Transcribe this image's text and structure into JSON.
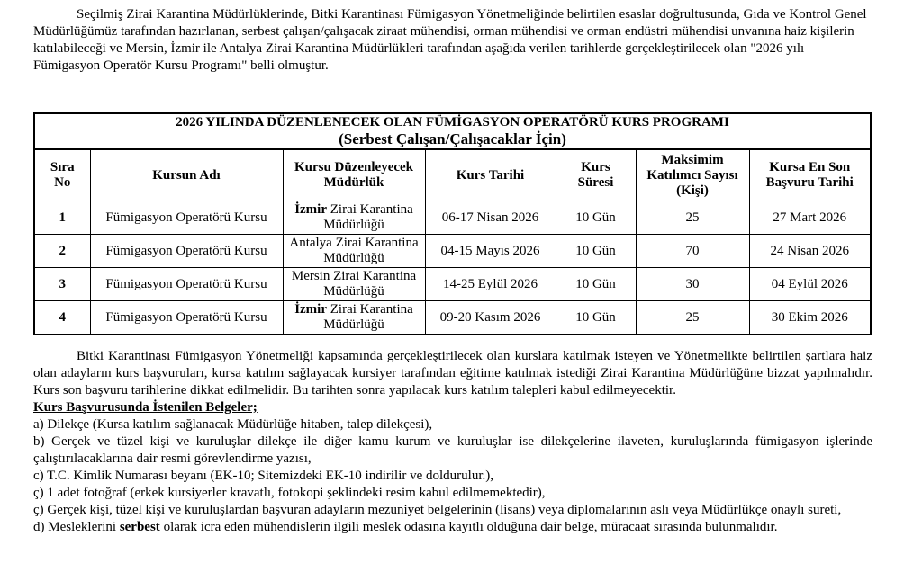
{
  "intro": "Seçilmiş Zirai Karantina Müdürlüklerinde, Bitki Karantinası Fümigasyon Yönetmeliğinde belirtilen esaslar doğrultusunda, Gıda ve Kontrol Genel Müdürlüğümüz tarafından hazırlanan, serbest çalışan/çalışacak ziraat mühendisi, orman mühendisi ve orman endüstri mühendisi unvanına haiz kişilerin katılabileceği ve Mersin, İzmir ile Antalya Zirai Karantina Müdürlükleri tarafından aşağıda verilen tarihlerde gerçekleştirilecek olan \"2026 yılı Fümigasyon Operatör Kursu Programı\" belli olmuştur.",
  "table": {
    "title": "2026 YILINDA DÜZENLENECEK OLAN FÜMİGASYON OPERATÖRÜ KURS PROGRAMI",
    "subtitle": "(Serbest Çalışan/Çalışacaklar İçin)",
    "headers": [
      "Sıra No",
      "Kursun Adı",
      "Kursu Düzenleyecek Müdürlük",
      "Kurs Tarihi",
      "Kurs Süresi",
      "Maksimim Katılımcı Sayısı (Kişi)",
      "Kursa En Son Başvuru Tarihi"
    ],
    "rows": [
      {
        "no": "1",
        "name": "Fümigasyon Operatörü Kursu",
        "org_bold": "İzmir",
        "org_rest": " Zirai Karantina Müdürlüğü",
        "date": "06-17 Nisan 2026",
        "duration": "10 Gün",
        "max": "25",
        "deadline": "27 Mart 2026"
      },
      {
        "no": "2",
        "name": "Fümigasyon Operatörü Kursu",
        "org_bold": "",
        "org_rest": "Antalya Zirai Karantina Müdürlüğü",
        "date": "04-15 Mayıs 2026",
        "duration": "10 Gün",
        "max": "70",
        "deadline": "24 Nisan 2026"
      },
      {
        "no": "3",
        "name": "Fümigasyon Operatörü Kursu",
        "org_bold": "",
        "org_rest": "Mersin Zirai Karantina Müdürlüğü",
        "date": "14-25 Eylül 2026",
        "duration": "10 Gün",
        "max": "30",
        "deadline": "04 Eylül 2026"
      },
      {
        "no": "4",
        "name": "Fümigasyon Operatörü Kursu",
        "org_bold": "İzmir",
        "org_rest": " Zirai Karantina Müdürlüğü",
        "date": "09-20 Kasım 2026",
        "duration": "10 Gün",
        "max": "25",
        "deadline": "30 Ekim 2026"
      }
    ]
  },
  "application": "Bitki Karantinası Fümigasyon Yönetmeliği kapsamında gerçekleştirilecek olan kurslara katılmak isteyen ve Yönetmelikte belirtilen şartlara haiz olan adayların kurs başvuruları, kursa katılım sağlayacak kursiyer tarafından eğitime katılmak istediği Zirai Karantina Müdürlüğüne bizzat yapılmalıdır. Kurs son başvuru tarihlerine dikkat edilmelidir. Bu tarihten sonra yapılacak kurs katılım talepleri kabul edilmeyecektir.",
  "documents": {
    "title": "Kurs Başvurusunda İstenilen Belgeler;",
    "items": [
      "a) Dilekçe (Kursa katılım sağlanacak Müdürlüğe hitaben, talep dilekçesi),",
      "b) Gerçek ve tüzel kişi ve kuruluşlar dilekçe ile diğer kamu kurum ve kuruluşlar ise dilekçelerine ilaveten, kuruluşlarında fümigasyon işlerinde çalıştırılacaklarına dair resmi görevlendirme yazısı,",
      "c) T.C. Kimlik Numarası beyanı (EK-10; Sitemizdeki EK-10 indirilir ve doldurulur.),",
      "ç) 1 adet fotoğraf (erkek kursiyerler kravatlı, fotokopi şeklindeki resim kabul edilmemektedir),",
      "ç) Gerçek kişi, tüzel kişi ve kuruluşlardan başvuran adayların mezuniyet belgelerinin (lisans) veya diplomalarının aslı veya Müdürlükçe onaylı sureti,"
    ],
    "last_prefix": "d) Mesleklerini ",
    "last_bold": "serbest",
    "last_suffix": " olarak icra eden mühendislerin ilgili meslek odasına kayıtlı olduğuna dair belge, müracaat sırasında bulunmalıdır."
  }
}
